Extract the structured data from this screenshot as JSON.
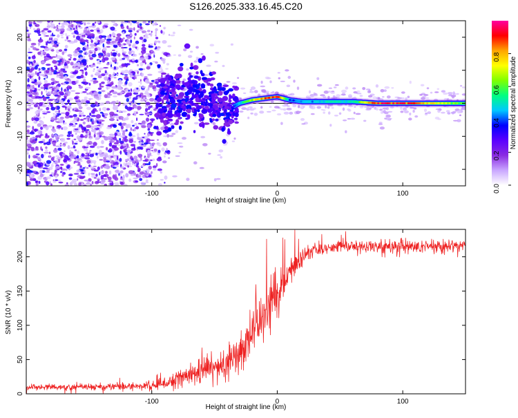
{
  "title": "S126.2025.333.16.45.C20",
  "chart_data": [
    {
      "type": "heatmap",
      "title": "S126.2025.333.16.45.C20",
      "xlabel": "Height of straight line (km)",
      "ylabel": "Frequency (Hz)",
      "xlim": [
        -200,
        150
      ],
      "ylim": [
        -25,
        25
      ],
      "xticks": [
        -100,
        0,
        100
      ],
      "yticks": [
        -20,
        -10,
        0,
        10,
        20
      ],
      "colorbar": {
        "label": "Normalized spectral amplitude",
        "range": [
          0.0,
          1.0
        ],
        "ticks": [
          0.0,
          0.2,
          0.4,
          0.6,
          0.8
        ],
        "colors": [
          "#ffffff",
          "#c9a6ff",
          "#8a2be2",
          "#5a00ff",
          "#0000ff",
          "#00c8ff",
          "#00ff80",
          "#7fff00",
          "#ffff00",
          "#ffa500",
          "#ff0000",
          "#ff00a0"
        ]
      },
      "ridge": {
        "description": "dominant frequency trace",
        "x": [
          -95,
          -80,
          -65,
          -50,
          -40,
          -35,
          -30,
          -20,
          -10,
          0,
          10,
          20,
          40,
          60,
          80,
          100,
          120,
          150
        ],
        "y": [
          1.0,
          1.5,
          2.5,
          1.0,
          -2.0,
          -1.0,
          0.0,
          1.0,
          1.5,
          2.0,
          1.0,
          0.5,
          0.5,
          0.5,
          0.0,
          0.0,
          0.0,
          0.0
        ],
        "amplitude": [
          0.15,
          0.2,
          0.2,
          0.25,
          0.3,
          0.35,
          0.5,
          0.7,
          0.9,
          0.95,
          0.4,
          0.45,
          0.5,
          0.5,
          0.95,
          0.95,
          0.8,
          0.6
        ]
      },
      "noise_region": {
        "x_range": [
          -200,
          -98
        ],
        "y_range": [
          -25,
          25
        ],
        "amplitude_range": [
          0.05,
          0.3
        ]
      }
    },
    {
      "type": "line",
      "xlabel": "Height of straight line (km)",
      "ylabel": "SNR (10 * v/v)",
      "xlim": [
        -200,
        150
      ],
      "ylim": [
        0,
        240
      ],
      "xticks": [
        -100,
        0,
        100
      ],
      "yticks": [
        0,
        50,
        100,
        150,
        200
      ],
      "color": "#ee2222",
      "series": [
        {
          "name": "SNR",
          "x": [
            -200,
            -150,
            -110,
            -90,
            -80,
            -70,
            -60,
            -50,
            -40,
            -30,
            -20,
            -10,
            0,
            10,
            20,
            30,
            50,
            75,
            100,
            125,
            150
          ],
          "y": [
            10,
            10,
            11,
            14,
            22,
            28,
            32,
            38,
            45,
            60,
            90,
            120,
            150,
            175,
            200,
            212,
            215,
            215,
            215,
            215,
            215
          ],
          "noise": [
            5,
            5,
            6,
            8,
            12,
            15,
            17,
            20,
            25,
            35,
            35,
            40,
            35,
            25,
            15,
            10,
            10,
            12,
            12,
            10,
            10
          ]
        }
      ]
    }
  ]
}
